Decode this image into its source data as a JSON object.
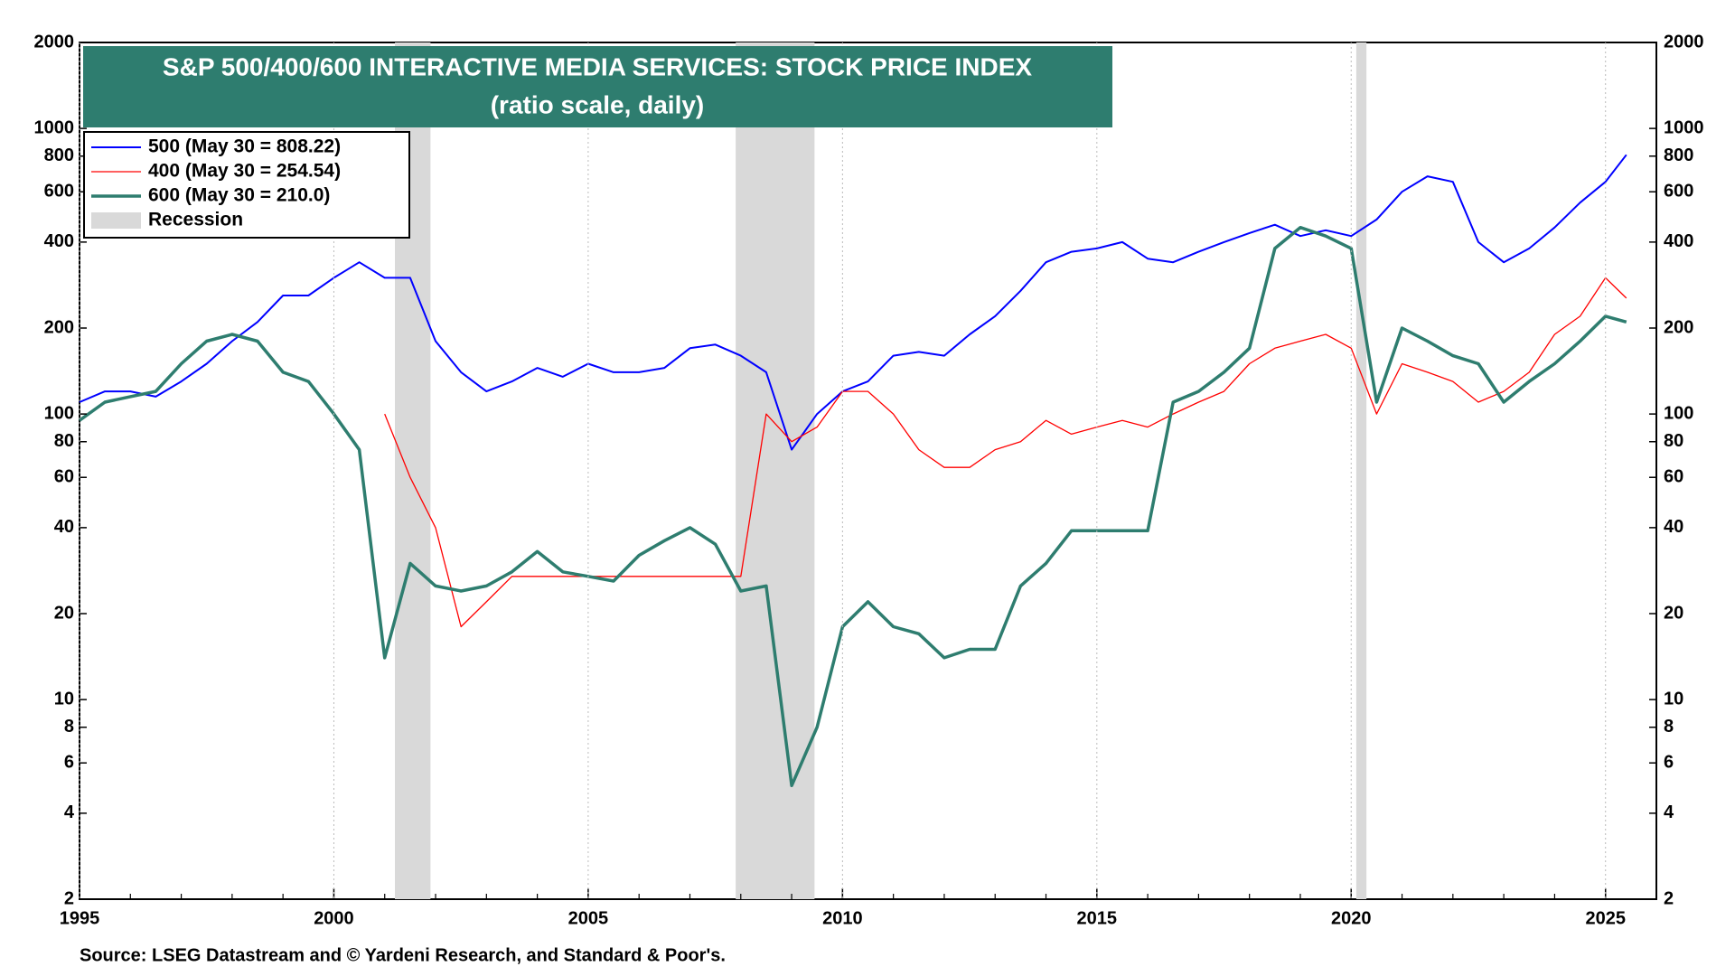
{
  "chart_data": {
    "type": "line",
    "title": "S&P 500/400/600 INTERACTIVE MEDIA SERVICES: STOCK PRICE INDEX",
    "subtitle": "(ratio scale, daily)",
    "source": "Source: LSEG Datastream and © Yardeni Research, and Standard & Poor's.",
    "log_scale": true,
    "xlim": [
      1995,
      2026
    ],
    "xticks": [
      1995,
      2000,
      2005,
      2010,
      2015,
      2020,
      2025
    ],
    "ylim": [
      2,
      2000
    ],
    "yticks": [
      2,
      4,
      6,
      8,
      10,
      20,
      40,
      60,
      80,
      100,
      200,
      400,
      600,
      800,
      1000,
      2000
    ],
    "y2lim": [
      2,
      2000
    ],
    "y2ticks": [
      2,
      4,
      6,
      8,
      10,
      20,
      40,
      60,
      80,
      100,
      200,
      400,
      600,
      800,
      1000,
      2000
    ],
    "recession_label": "Recession",
    "recession_color": "#d9d9d9",
    "recessions": [
      [
        2001.2,
        2001.9
      ],
      [
        2007.9,
        2009.45
      ],
      [
        2020.1,
        2020.3
      ]
    ],
    "x": [
      1995,
      1995.5,
      1996,
      1996.5,
      1997,
      1997.5,
      1998,
      1998.5,
      1999,
      1999.5,
      2000,
      2000.5,
      2001,
      2001.5,
      2002,
      2002.5,
      2003,
      2003.5,
      2004,
      2004.5,
      2005,
      2005.5,
      2006,
      2006.5,
      2007,
      2007.5,
      2008,
      2008.5,
      2009,
      2009.5,
      2010,
      2010.5,
      2011,
      2011.5,
      2012,
      2012.5,
      2013,
      2013.5,
      2014,
      2014.5,
      2015,
      2015.5,
      2016,
      2016.5,
      2017,
      2017.5,
      2018,
      2018.5,
      2019,
      2019.5,
      2020,
      2020.5,
      2021,
      2021.5,
      2022,
      2022.5,
      2023,
      2023.5,
      2024,
      2024.5,
      2025,
      2025.41
    ],
    "series": [
      {
        "name": "500 (May 30 = 808.22)",
        "color": "#0000ff",
        "width": 2,
        "values": [
          110,
          120,
          120,
          115,
          130,
          150,
          180,
          210,
          260,
          260,
          300,
          340,
          300,
          300,
          180,
          140,
          120,
          130,
          145,
          135,
          150,
          140,
          140,
          145,
          170,
          175,
          160,
          140,
          75,
          100,
          120,
          130,
          160,
          165,
          160,
          190,
          220,
          270,
          340,
          370,
          380,
          400,
          350,
          340,
          370,
          400,
          430,
          460,
          420,
          440,
          420,
          480,
          600,
          680,
          650,
          400,
          340,
          380,
          450,
          550,
          650,
          808.22
        ]
      },
      {
        "name": "400 (May 30 = 254.54)",
        "color": "#ff0000",
        "width": 1.3,
        "values": [
          null,
          null,
          null,
          null,
          null,
          null,
          null,
          null,
          null,
          null,
          null,
          null,
          100,
          60,
          40,
          18,
          22,
          27,
          27,
          27,
          27,
          27,
          27,
          27,
          27,
          27,
          27,
          100,
          80,
          90,
          120,
          120,
          100,
          75,
          65,
          65,
          75,
          80,
          95,
          85,
          90,
          95,
          90,
          100,
          110,
          120,
          150,
          170,
          180,
          190,
          170,
          100,
          150,
          140,
          130,
          110,
          120,
          140,
          190,
          220,
          300,
          254.54
        ]
      },
      {
        "name": "600 (May 30 = 210.0)",
        "color": "#2e7d6f",
        "width": 3.5,
        "values": [
          95,
          110,
          115,
          120,
          150,
          180,
          190,
          180,
          140,
          130,
          100,
          75,
          14,
          30,
          25,
          24,
          25,
          28,
          33,
          28,
          27,
          26,
          32,
          36,
          40,
          35,
          24,
          25,
          5,
          8,
          18,
          22,
          18,
          17,
          14,
          15,
          15,
          25,
          30,
          39,
          39,
          39,
          39,
          110,
          120,
          140,
          170,
          380,
          450,
          420,
          380,
          110,
          200,
          180,
          160,
          150,
          110,
          130,
          150,
          180,
          220,
          210.0
        ]
      }
    ]
  }
}
